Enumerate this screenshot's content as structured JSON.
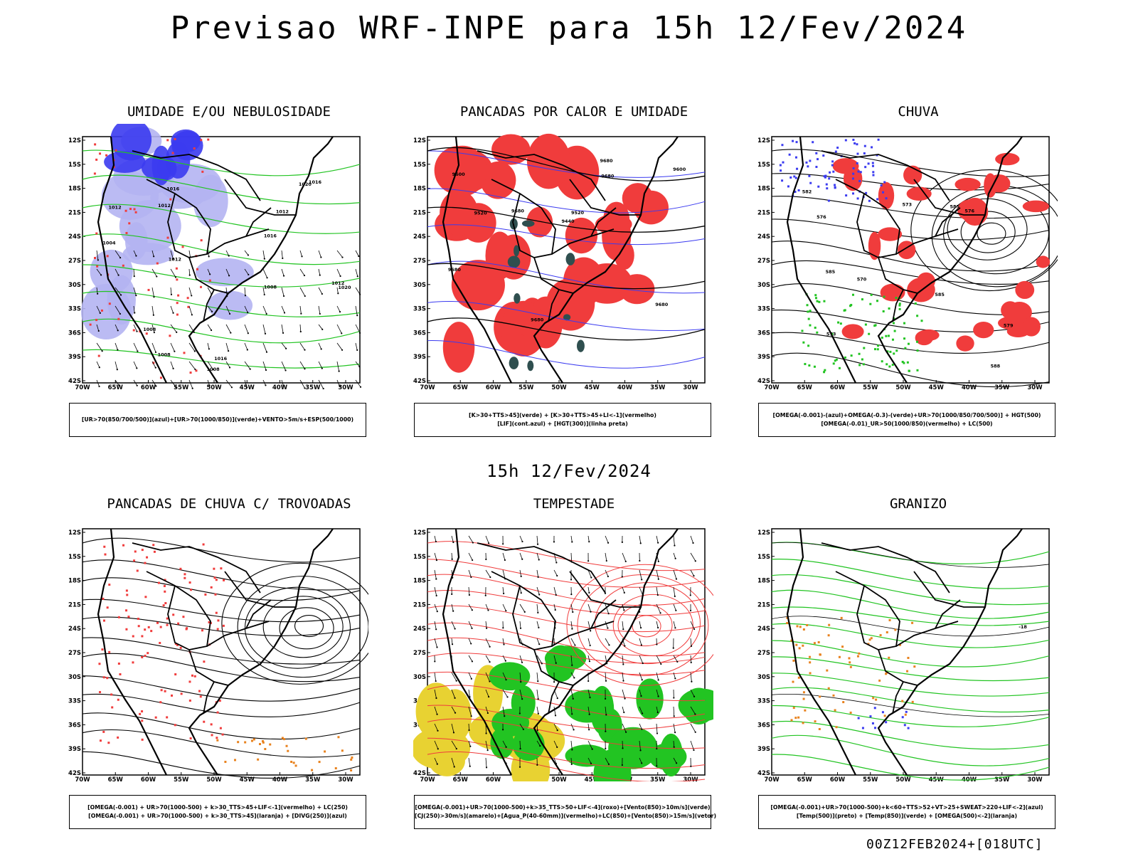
{
  "header": {
    "title": "Previsao WRF-INPE  para 15h 12/Fev/2024",
    "subtitle": "15h 12/Fev/2024",
    "run_label": "00Z12FEB2024+[018UTC]"
  },
  "colors": {
    "blue": "#3b3bf0",
    "lightblue": "#b4b4f2",
    "green": "#22c422",
    "red": "#f03c3c",
    "darkgreen": "#2f4f4f",
    "orange": "#e8821e",
    "yellow": "#e8d232",
    "black": "#000000"
  },
  "axes": {
    "lat_labels": [
      "12S",
      "15S",
      "18S",
      "21S",
      "24S",
      "27S",
      "30S",
      "33S",
      "36S",
      "39S",
      "42S"
    ],
    "lon_labels": [
      "70W",
      "65W",
      "60W",
      "55W",
      "50W",
      "45W",
      "40W",
      "35W",
      "30W"
    ]
  },
  "panels": [
    {
      "title": "UMIDADE E/OU NEBULOSIDADE",
      "legend": [
        "[UR>70(850/700/500)](azul)+[UR>70(1000/850)](verde)+VENTO>5m/s+ESP(500/1000)"
      ],
      "contour_labels": [
        "1012",
        "1012",
        "1016",
        "1016",
        "1020",
        "1008",
        "1008",
        "1012",
        "1016",
        "1020",
        "1012",
        "1016",
        "1012",
        "1008",
        "1004",
        "1008"
      ]
    },
    {
      "title": "PANCADAS POR CALOR E UMIDADE",
      "legend": [
        "[K>30+TTS>45](verde) + [K>30+TTS>45+LI<-1](vermelho)",
        "[LIF](cont.azul) + [HGT(300)](linha preta)"
      ],
      "contour_labels": [
        "9680",
        "9680",
        "9680",
        "9680",
        "9680",
        "9600",
        "9520",
        "9440",
        "9520",
        "9600",
        "9680"
      ]
    },
    {
      "title": "CHUVA",
      "legend": [
        "[OMEGA(-0.001)-(azul)+OMEGA(-0.3)-(verde)+UR>70(1000/850/700/500)] + HGT(500)",
        "[OMEGA(-0.01)_UR>50(1000/850)(vermelho) + LC(500)"
      ],
      "contour_labels": [
        "588",
        "585",
        "585",
        "582",
        "579",
        "576",
        "573",
        "570",
        "576",
        "573",
        "585"
      ]
    },
    {
      "title": "PANCADAS DE CHUVA C/ TROVOADAS",
      "legend": [
        "[OMEGA(-0.001) + UR>70(1000-500) + k>30_TTS>45+LIF<-1](vermelho) + LC(250)",
        "[OMEGA(-0.001) + UR>70(1000-500) + k>30_TTS>45](laranja) + [DIVG(250)](azul)"
      ],
      "contour_labels": []
    },
    {
      "title": "TEMPESTADE",
      "legend": [
        "[OMEGA(-0.001)+UR>70(1000-500)+k>35_TTS>50+LIF<-4](roxo)+[Vento(850)>10m/s](verde)",
        "[CJ(250)>30m/s](amarelo)+[Agua_P(40-60mm)](vermelho)+LC(850)+[Vento(850)>15m/s](vetor)"
      ],
      "contour_labels": []
    },
    {
      "title": "GRANIZO",
      "legend": [
        "[OMEGA(-0.001)+UR>70(1000-500)+k<60+TTS>52+VT>25+SWEAT>220+LIF<-2](azul)",
        "[Temp(500)](preto) + [Temp(850)](verde) + [OMEGA(500)<-2](laranja)"
      ],
      "contour_labels": [
        "-18"
      ]
    }
  ]
}
